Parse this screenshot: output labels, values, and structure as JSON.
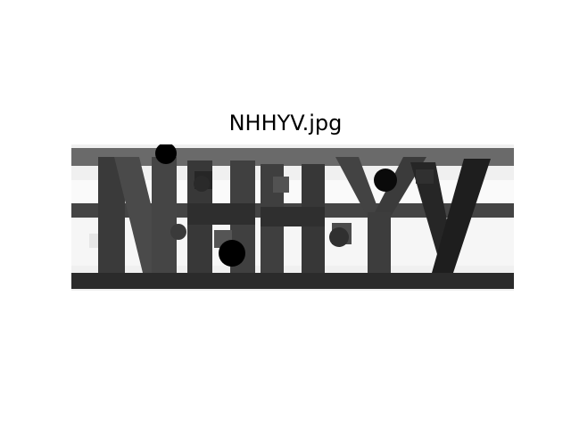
{
  "title": "NHHYV.jpg",
  "image": {
    "description_name": "captcha-image",
    "grayscale": true,
    "colors": {
      "background": "#f2f2f2",
      "stripe": "#5a5a5a",
      "bottom_stripe": "#2f2f2f",
      "glyph_dark": "#2a2a2a",
      "glyph_mid": "#4a4a4a",
      "dot": "#000000"
    }
  }
}
